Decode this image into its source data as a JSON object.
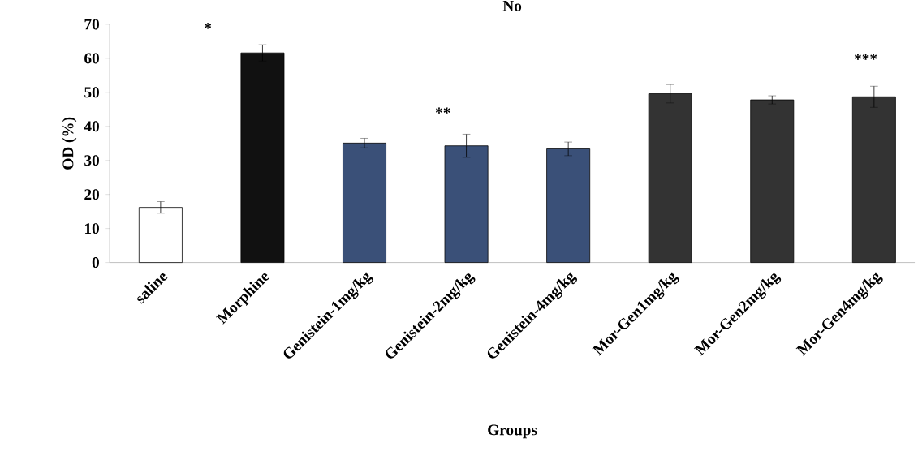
{
  "chart_data": {
    "type": "bar",
    "title": "No",
    "xlabel": "Groups",
    "ylabel": "OD (%)",
    "categories": [
      "saline",
      "Morphine",
      "Genistein-1mg/kg",
      "Genistein-2mg/kg",
      "Genistein-4mg/kg",
      "Mor-Gen1mg/kg",
      "Mor-Gen2mg/kg",
      "Mor-Gen4mg/kg"
    ],
    "values": [
      16.2,
      61.6,
      35.1,
      34.3,
      33.4,
      49.6,
      47.8,
      48.7
    ],
    "errors": [
      1.7,
      2.4,
      1.4,
      3.4,
      2.0,
      2.7,
      1.2,
      3.1
    ],
    "colors": [
      "#ffffff",
      "#111111",
      "#3a5078",
      "#3a5078",
      "#3a5078",
      "#333333",
      "#333333",
      "#333333"
    ],
    "ylim": [
      0,
      70
    ],
    "yticks": [
      0,
      10,
      20,
      30,
      40,
      50,
      60,
      70
    ],
    "annotations": [
      "*",
      "**",
      "***"
    ]
  }
}
